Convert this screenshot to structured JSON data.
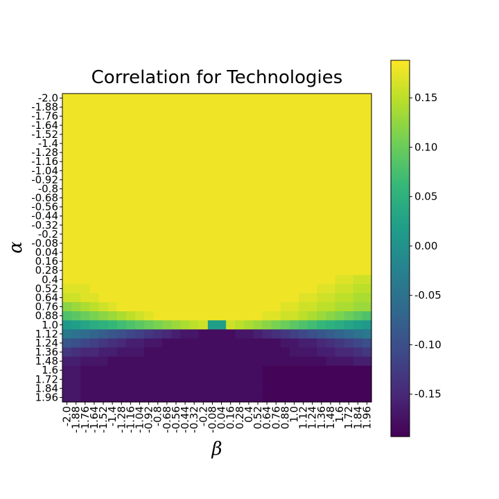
{
  "chart_data": {
    "type": "heatmap",
    "title": "Correlation for Technologies",
    "x_label": "β",
    "y_label": "α",
    "colormap": "viridis",
    "clim": [
      -0.193,
      0.188
    ],
    "colorbar_ticks": [
      -0.15,
      {
        "value": -0.1,
        "label": "-0.10"
      },
      -0.05,
      {
        "value": 0,
        "label": "0.00"
      },
      0.05,
      {
        "value": 0.1,
        "label": "0.10"
      },
      0.15
    ],
    "x_categories": [
      "-2.0",
      "-1.88",
      "-1.76",
      "-1.64",
      "-1.52",
      "-1.4",
      "-1.28",
      "-1.16",
      "-1.04",
      "-0.92",
      "-0.8",
      "-0.68",
      "-0.56",
      "-0.44",
      "-0.32",
      "-0.2",
      "-0.08",
      "0.04",
      "0.16",
      "0.28",
      "0.4",
      "0.52",
      "0.64",
      "0.76",
      "0.88",
      "1.0",
      "1.12",
      "1.24",
      "1.36",
      "1.48",
      "1.6",
      "1.72",
      "1.84",
      "1.96"
    ],
    "y_categories": [
      "-2.0",
      "-1.88",
      "-1.76",
      "-1.64",
      "-1.52",
      "-1.4",
      "-1.28",
      "-1.16",
      "-1.04",
      "-0.92",
      "-0.8",
      "-0.68",
      "-0.56",
      "-0.44",
      "-0.32",
      "-0.2",
      "-0.08",
      "0.04",
      "0.16",
      "0.28",
      "0.4",
      "0.52",
      "0.64",
      "0.76",
      "0.88",
      "1.0",
      "1.12",
      "1.24",
      "1.36",
      "1.48",
      "1.6",
      "1.72",
      "1.84",
      "1.96"
    ],
    "values": [
      [
        0.18,
        0.18,
        0.18,
        0.18,
        0.18,
        0.18,
        0.18,
        0.18,
        0.18,
        0.18,
        0.18,
        0.18,
        0.18,
        0.18,
        0.18,
        0.18,
        0.18,
        0.18,
        0.18,
        0.18,
        0.18,
        0.18,
        0.18,
        0.18,
        0.18,
        0.18,
        0.18,
        0.18,
        0.18,
        0.18,
        0.18,
        0.18,
        0.18,
        0.18
      ],
      [
        0.18,
        0.18,
        0.18,
        0.18,
        0.18,
        0.18,
        0.18,
        0.18,
        0.18,
        0.18,
        0.18,
        0.18,
        0.18,
        0.18,
        0.18,
        0.18,
        0.18,
        0.18,
        0.18,
        0.18,
        0.18,
        0.18,
        0.18,
        0.18,
        0.18,
        0.18,
        0.18,
        0.18,
        0.18,
        0.18,
        0.18,
        0.18,
        0.18,
        0.18
      ],
      [
        0.18,
        0.18,
        0.18,
        0.18,
        0.18,
        0.18,
        0.18,
        0.18,
        0.18,
        0.18,
        0.18,
        0.18,
        0.18,
        0.18,
        0.18,
        0.18,
        0.18,
        0.18,
        0.18,
        0.18,
        0.18,
        0.18,
        0.18,
        0.18,
        0.18,
        0.18,
        0.18,
        0.18,
        0.18,
        0.18,
        0.18,
        0.18,
        0.18,
        0.18
      ],
      [
        0.18,
        0.18,
        0.18,
        0.18,
        0.18,
        0.18,
        0.18,
        0.18,
        0.18,
        0.18,
        0.18,
        0.18,
        0.18,
        0.18,
        0.18,
        0.18,
        0.18,
        0.18,
        0.18,
        0.18,
        0.18,
        0.18,
        0.18,
        0.18,
        0.18,
        0.18,
        0.18,
        0.18,
        0.18,
        0.18,
        0.18,
        0.18,
        0.18,
        0.18
      ],
      [
        0.18,
        0.18,
        0.18,
        0.18,
        0.18,
        0.18,
        0.18,
        0.18,
        0.18,
        0.18,
        0.18,
        0.18,
        0.18,
        0.18,
        0.18,
        0.18,
        0.18,
        0.18,
        0.18,
        0.18,
        0.18,
        0.18,
        0.18,
        0.18,
        0.18,
        0.18,
        0.18,
        0.18,
        0.18,
        0.18,
        0.18,
        0.18,
        0.18,
        0.18
      ],
      [
        0.18,
        0.18,
        0.18,
        0.18,
        0.18,
        0.18,
        0.18,
        0.18,
        0.18,
        0.18,
        0.18,
        0.18,
        0.18,
        0.18,
        0.18,
        0.18,
        0.18,
        0.18,
        0.18,
        0.18,
        0.18,
        0.18,
        0.18,
        0.18,
        0.18,
        0.18,
        0.18,
        0.18,
        0.18,
        0.18,
        0.18,
        0.18,
        0.18,
        0.18
      ],
      [
        0.18,
        0.18,
        0.18,
        0.18,
        0.18,
        0.18,
        0.18,
        0.18,
        0.18,
        0.18,
        0.18,
        0.18,
        0.18,
        0.18,
        0.18,
        0.18,
        0.18,
        0.18,
        0.18,
        0.18,
        0.18,
        0.18,
        0.18,
        0.18,
        0.18,
        0.18,
        0.18,
        0.18,
        0.18,
        0.18,
        0.18,
        0.18,
        0.18,
        0.18
      ],
      [
        0.18,
        0.18,
        0.18,
        0.18,
        0.18,
        0.18,
        0.18,
        0.18,
        0.18,
        0.18,
        0.18,
        0.18,
        0.18,
        0.18,
        0.18,
        0.18,
        0.18,
        0.18,
        0.18,
        0.18,
        0.18,
        0.18,
        0.18,
        0.18,
        0.18,
        0.18,
        0.18,
        0.18,
        0.18,
        0.18,
        0.18,
        0.18,
        0.18,
        0.18
      ],
      [
        0.18,
        0.18,
        0.18,
        0.18,
        0.18,
        0.18,
        0.18,
        0.18,
        0.18,
        0.18,
        0.18,
        0.18,
        0.18,
        0.18,
        0.18,
        0.18,
        0.18,
        0.18,
        0.18,
        0.18,
        0.18,
        0.18,
        0.18,
        0.18,
        0.18,
        0.18,
        0.18,
        0.18,
        0.18,
        0.18,
        0.18,
        0.18,
        0.18,
        0.18
      ],
      [
        0.18,
        0.18,
        0.18,
        0.18,
        0.18,
        0.18,
        0.18,
        0.18,
        0.18,
        0.18,
        0.18,
        0.18,
        0.18,
        0.18,
        0.18,
        0.18,
        0.18,
        0.18,
        0.18,
        0.18,
        0.18,
        0.18,
        0.18,
        0.18,
        0.18,
        0.18,
        0.18,
        0.18,
        0.18,
        0.18,
        0.18,
        0.18,
        0.18,
        0.18
      ],
      [
        0.18,
        0.18,
        0.18,
        0.18,
        0.18,
        0.18,
        0.18,
        0.18,
        0.18,
        0.18,
        0.18,
        0.18,
        0.18,
        0.18,
        0.18,
        0.18,
        0.18,
        0.18,
        0.18,
        0.18,
        0.18,
        0.18,
        0.18,
        0.18,
        0.18,
        0.18,
        0.18,
        0.18,
        0.18,
        0.18,
        0.18,
        0.18,
        0.18,
        0.18
      ],
      [
        0.18,
        0.18,
        0.18,
        0.18,
        0.18,
        0.18,
        0.18,
        0.18,
        0.18,
        0.18,
        0.18,
        0.18,
        0.18,
        0.18,
        0.18,
        0.18,
        0.18,
        0.18,
        0.18,
        0.18,
        0.18,
        0.18,
        0.18,
        0.18,
        0.18,
        0.18,
        0.18,
        0.18,
        0.18,
        0.18,
        0.18,
        0.18,
        0.18,
        0.18
      ],
      [
        0.18,
        0.18,
        0.18,
        0.18,
        0.18,
        0.18,
        0.18,
        0.18,
        0.18,
        0.18,
        0.18,
        0.18,
        0.18,
        0.18,
        0.18,
        0.18,
        0.18,
        0.18,
        0.18,
        0.18,
        0.18,
        0.18,
        0.18,
        0.18,
        0.18,
        0.18,
        0.18,
        0.18,
        0.18,
        0.18,
        0.18,
        0.18,
        0.18,
        0.18
      ],
      [
        0.18,
        0.18,
        0.18,
        0.18,
        0.18,
        0.18,
        0.18,
        0.18,
        0.18,
        0.18,
        0.18,
        0.18,
        0.18,
        0.18,
        0.18,
        0.18,
        0.18,
        0.18,
        0.18,
        0.18,
        0.18,
        0.18,
        0.18,
        0.18,
        0.18,
        0.18,
        0.18,
        0.18,
        0.18,
        0.18,
        0.18,
        0.18,
        0.18,
        0.18
      ],
      [
        0.18,
        0.18,
        0.18,
        0.18,
        0.18,
        0.18,
        0.18,
        0.18,
        0.18,
        0.18,
        0.18,
        0.18,
        0.18,
        0.18,
        0.18,
        0.18,
        0.18,
        0.18,
        0.18,
        0.18,
        0.18,
        0.18,
        0.18,
        0.18,
        0.18,
        0.18,
        0.18,
        0.18,
        0.18,
        0.18,
        0.18,
        0.18,
        0.18,
        0.18
      ],
      [
        0.18,
        0.18,
        0.18,
        0.18,
        0.18,
        0.18,
        0.18,
        0.18,
        0.18,
        0.18,
        0.18,
        0.18,
        0.18,
        0.18,
        0.18,
        0.18,
        0.18,
        0.18,
        0.18,
        0.18,
        0.18,
        0.18,
        0.18,
        0.18,
        0.18,
        0.18,
        0.18,
        0.18,
        0.18,
        0.18,
        0.18,
        0.18,
        0.18,
        0.18
      ],
      [
        0.18,
        0.18,
        0.18,
        0.18,
        0.18,
        0.18,
        0.18,
        0.18,
        0.18,
        0.18,
        0.18,
        0.18,
        0.18,
        0.18,
        0.18,
        0.18,
        0.18,
        0.18,
        0.18,
        0.18,
        0.18,
        0.18,
        0.18,
        0.18,
        0.18,
        0.18,
        0.18,
        0.18,
        0.18,
        0.18,
        0.18,
        0.18,
        0.18,
        0.18
      ],
      [
        0.18,
        0.18,
        0.18,
        0.18,
        0.18,
        0.18,
        0.18,
        0.18,
        0.18,
        0.18,
        0.18,
        0.18,
        0.18,
        0.18,
        0.18,
        0.18,
        0.18,
        0.18,
        0.18,
        0.18,
        0.18,
        0.18,
        0.18,
        0.18,
        0.18,
        0.18,
        0.18,
        0.18,
        0.18,
        0.18,
        0.18,
        0.18,
        0.18,
        0.18
      ],
      [
        0.18,
        0.18,
        0.18,
        0.18,
        0.18,
        0.18,
        0.18,
        0.18,
        0.18,
        0.18,
        0.18,
        0.18,
        0.18,
        0.18,
        0.18,
        0.18,
        0.18,
        0.18,
        0.18,
        0.18,
        0.18,
        0.18,
        0.18,
        0.18,
        0.18,
        0.18,
        0.18,
        0.18,
        0.18,
        0.18,
        0.18,
        0.18,
        0.18,
        0.18
      ],
      [
        0.18,
        0.18,
        0.18,
        0.18,
        0.18,
        0.18,
        0.18,
        0.18,
        0.18,
        0.18,
        0.18,
        0.18,
        0.18,
        0.18,
        0.18,
        0.18,
        0.18,
        0.18,
        0.18,
        0.18,
        0.18,
        0.18,
        0.18,
        0.18,
        0.18,
        0.18,
        0.18,
        0.18,
        0.18,
        0.18,
        0.18,
        0.18,
        0.18,
        0.18
      ],
      [
        0.18,
        0.18,
        0.18,
        0.18,
        0.18,
        0.18,
        0.18,
        0.18,
        0.18,
        0.18,
        0.18,
        0.18,
        0.18,
        0.18,
        0.18,
        0.18,
        0.18,
        0.18,
        0.18,
        0.18,
        0.18,
        0.18,
        0.18,
        0.18,
        0.18,
        0.18,
        0.18,
        0.18,
        0.18,
        0.18,
        0.17,
        0.17,
        0.16,
        0.16
      ],
      [
        0.17,
        0.17,
        0.17,
        0.18,
        0.18,
        0.18,
        0.18,
        0.18,
        0.18,
        0.18,
        0.18,
        0.18,
        0.18,
        0.18,
        0.18,
        0.18,
        0.18,
        0.18,
        0.18,
        0.18,
        0.18,
        0.18,
        0.18,
        0.18,
        0.18,
        0.18,
        0.18,
        0.18,
        0.17,
        0.17,
        0.16,
        0.16,
        0.15,
        0.15
      ],
      [
        0.16,
        0.16,
        0.17,
        0.17,
        0.18,
        0.18,
        0.18,
        0.18,
        0.18,
        0.18,
        0.18,
        0.18,
        0.18,
        0.18,
        0.18,
        0.18,
        0.18,
        0.18,
        0.18,
        0.18,
        0.18,
        0.18,
        0.18,
        0.18,
        0.18,
        0.18,
        0.17,
        0.17,
        0.16,
        0.16,
        0.15,
        0.15,
        0.14,
        0.14
      ],
      [
        0.12,
        0.13,
        0.14,
        0.15,
        0.16,
        0.17,
        0.18,
        0.18,
        0.18,
        0.18,
        0.18,
        0.18,
        0.18,
        0.18,
        0.18,
        0.18,
        0.18,
        0.18,
        0.18,
        0.18,
        0.18,
        0.18,
        0.18,
        0.18,
        0.17,
        0.17,
        0.16,
        0.16,
        0.15,
        0.15,
        0.14,
        0.14,
        0.13,
        0.13
      ],
      [
        0.08,
        0.09,
        0.1,
        0.11,
        0.12,
        0.13,
        0.14,
        0.15,
        0.16,
        0.17,
        0.18,
        0.18,
        0.18,
        0.18,
        0.18,
        0.18,
        0.18,
        0.18,
        0.18,
        0.18,
        0.18,
        0.18,
        0.17,
        0.17,
        0.16,
        0.16,
        0.15,
        0.14,
        0.13,
        0.12,
        0.11,
        0.1,
        0.09,
        0.08
      ],
      [
        0.01,
        0.02,
        0.03,
        0.04,
        0.05,
        0.06,
        0.07,
        0.08,
        0.09,
        0.1,
        0.11,
        0.12,
        0.13,
        0.14,
        0.15,
        0.16,
        0.02,
        0.02,
        0.16,
        0.15,
        0.14,
        0.13,
        0.12,
        0.11,
        0.1,
        0.09,
        0.08,
        0.07,
        0.06,
        0.05,
        0.04,
        0.03,
        0.02,
        0.01
      ],
      [
        -0.04,
        -0.05,
        -0.06,
        -0.07,
        -0.08,
        -0.09,
        -0.1,
        -0.11,
        -0.12,
        -0.13,
        -0.14,
        -0.15,
        -0.16,
        -0.17,
        -0.17,
        -0.18,
        -0.18,
        -0.18,
        -0.18,
        -0.17,
        -0.17,
        -0.16,
        -0.15,
        -0.14,
        -0.13,
        -0.12,
        -0.11,
        -0.1,
        -0.09,
        -0.08,
        -0.07,
        -0.06,
        -0.05,
        -0.04
      ],
      [
        -0.09,
        -0.1,
        -0.11,
        -0.12,
        -0.13,
        -0.14,
        -0.15,
        -0.16,
        -0.16,
        -0.17,
        -0.17,
        -0.18,
        -0.18,
        -0.18,
        -0.18,
        -0.18,
        -0.18,
        -0.18,
        -0.18,
        -0.18,
        -0.18,
        -0.18,
        -0.18,
        -0.18,
        -0.17,
        -0.17,
        -0.16,
        -0.16,
        -0.15,
        -0.14,
        -0.13,
        -0.12,
        -0.11,
        -0.1
      ],
      [
        -0.13,
        -0.14,
        -0.15,
        -0.15,
        -0.16,
        -0.16,
        -0.17,
        -0.17,
        -0.17,
        -0.18,
        -0.18,
        -0.18,
        -0.18,
        -0.18,
        -0.18,
        -0.18,
        -0.18,
        -0.18,
        -0.18,
        -0.18,
        -0.18,
        -0.18,
        -0.18,
        -0.18,
        -0.18,
        -0.17,
        -0.17,
        -0.17,
        -0.16,
        -0.16,
        -0.15,
        -0.15,
        -0.14,
        -0.13
      ],
      [
        -0.16,
        -0.16,
        -0.17,
        -0.17,
        -0.17,
        -0.18,
        -0.18,
        -0.18,
        -0.18,
        -0.18,
        -0.18,
        -0.18,
        -0.18,
        -0.18,
        -0.18,
        -0.18,
        -0.18,
        -0.18,
        -0.18,
        -0.18,
        -0.18,
        -0.18,
        -0.18,
        -0.18,
        -0.18,
        -0.18,
        -0.18,
        -0.18,
        -0.18,
        -0.17,
        -0.17,
        -0.17,
        -0.16,
        -0.16
      ],
      [
        -0.17,
        -0.17,
        -0.18,
        -0.18,
        -0.18,
        -0.18,
        -0.18,
        -0.18,
        -0.18,
        -0.18,
        -0.18,
        -0.18,
        -0.18,
        -0.18,
        -0.18,
        -0.18,
        -0.18,
        -0.18,
        -0.18,
        -0.18,
        -0.18,
        -0.18,
        -0.19,
        -0.19,
        -0.19,
        -0.19,
        -0.19,
        -0.19,
        -0.19,
        -0.19,
        -0.19,
        -0.19,
        -0.19,
        -0.19
      ],
      [
        -0.17,
        -0.17,
        -0.18,
        -0.18,
        -0.18,
        -0.18,
        -0.18,
        -0.18,
        -0.18,
        -0.18,
        -0.18,
        -0.18,
        -0.18,
        -0.18,
        -0.18,
        -0.18,
        -0.18,
        -0.18,
        -0.18,
        -0.18,
        -0.18,
        -0.18,
        -0.19,
        -0.19,
        -0.19,
        -0.19,
        -0.19,
        -0.19,
        -0.19,
        -0.19,
        -0.19,
        -0.19,
        -0.19,
        -0.19
      ],
      [
        -0.17,
        -0.17,
        -0.18,
        -0.18,
        -0.18,
        -0.18,
        -0.18,
        -0.18,
        -0.18,
        -0.18,
        -0.18,
        -0.18,
        -0.18,
        -0.18,
        -0.18,
        -0.18,
        -0.18,
        -0.18,
        -0.18,
        -0.18,
        -0.18,
        -0.18,
        -0.19,
        -0.19,
        -0.19,
        -0.19,
        -0.19,
        -0.19,
        -0.19,
        -0.19,
        -0.19,
        -0.19,
        -0.19,
        -0.19
      ],
      [
        -0.17,
        -0.17,
        -0.18,
        -0.18,
        -0.18,
        -0.18,
        -0.18,
        -0.18,
        -0.18,
        -0.18,
        -0.18,
        -0.18,
        -0.18,
        -0.18,
        -0.18,
        -0.18,
        -0.18,
        -0.18,
        -0.18,
        -0.18,
        -0.18,
        -0.18,
        -0.19,
        -0.19,
        -0.19,
        -0.19,
        -0.19,
        -0.19,
        -0.19,
        -0.19,
        -0.19,
        -0.19,
        -0.19,
        -0.19
      ]
    ]
  }
}
